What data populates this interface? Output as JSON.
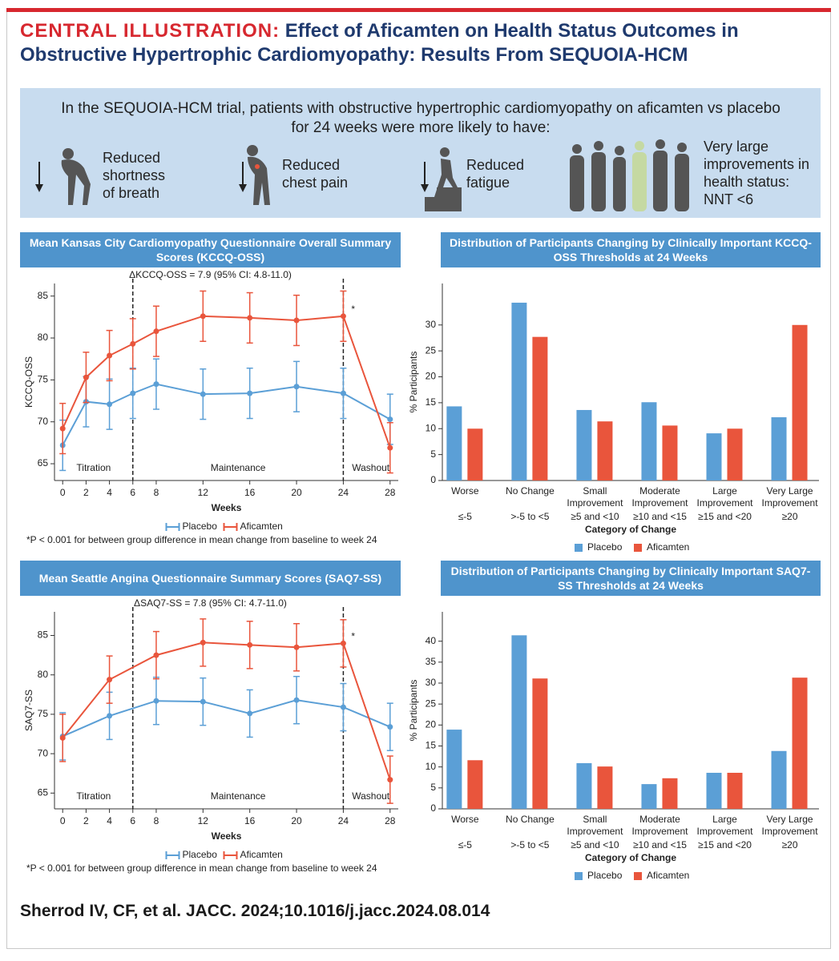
{
  "header": {
    "label": "CENTRAL ILLUSTRATION:",
    "title": "Effect of Aficamten on Health Status Outcomes in Obstructive Hypertrophic Cardiomyopathy: Results From SEQUOIA-HCM"
  },
  "summary": {
    "text": "In the SEQUOIA-HCM trial, patients with obstructive hypertrophic cardiomyopathy on aficamten vs placebo for 24 weeks were more likely to have:",
    "items": [
      "Reduced shortness of breath",
      "Reduced chest pain",
      "Reduced fatigue",
      "Very large improvements in health status: NNT <6"
    ]
  },
  "chart_data": [
    {
      "type": "line",
      "title": "Mean Kansas City Cardiomyopathy Questionnaire Overall Summary Scores (KCCQ-OSS)",
      "subtitle": "ΔKCCQ-OSS = 7.9 (95% CI: 4.8-11.0)",
      "xlabel": "Weeks",
      "ylabel": "KCCQ-OSS",
      "x": [
        0,
        2,
        4,
        6,
        8,
        12,
        16,
        20,
        24,
        28
      ],
      "series": [
        {
          "name": "Placebo",
          "color": "#5b9fd6",
          "values": [
            67.2,
            72.4,
            72.1,
            73.4,
            74.5,
            73.3,
            73.4,
            74.2,
            73.4,
            70.3
          ],
          "errors": [
            3,
            3,
            3,
            3,
            3,
            3,
            3,
            3,
            3,
            3
          ]
        },
        {
          "name": "Aficamten",
          "color": "#e9553c",
          "values": [
            69.2,
            75.3,
            77.9,
            79.3,
            80.8,
            82.6,
            82.4,
            82.1,
            82.6,
            66.9
          ],
          "errors": [
            3,
            3,
            3,
            3,
            3,
            3,
            3,
            3,
            3,
            3
          ]
        }
      ],
      "xlim": [
        -0.7,
        28.7
      ],
      "ylim": [
        63,
        86.5
      ],
      "xticks": [
        0,
        2,
        4,
        6,
        8,
        12,
        16,
        20,
        24,
        28
      ],
      "yticks": [
        65,
        70,
        75,
        80,
        85
      ],
      "vlines": [
        6,
        24
      ],
      "phases": [
        "Titration",
        "Maintenance",
        "Washout"
      ],
      "annotation": {
        "text": "*",
        "x": 24
      },
      "footnote": "*P < 0.001 for between group difference in mean change from baseline to week 24"
    },
    {
      "type": "bar",
      "title": "Distribution of Participants Changing by Clinically Important KCCQ-OSS Thresholds at 24 Weeks",
      "xlabel": "Category of Change",
      "ylabel": "% Participants",
      "categories": [
        "Worse",
        "No Change",
        "Small Improvement",
        "Moderate Improvement",
        "Large Improvement",
        "Very Large Improvement"
      ],
      "thresholds": [
        "≤-5",
        ">-5 to <5",
        "≥5 and <10",
        "≥10 and <15",
        "≥15 and <20",
        "≥20"
      ],
      "series": [
        {
          "name": "Placebo",
          "color": "#5b9fd6",
          "values": [
            14.3,
            34.3,
            13.6,
            15.1,
            9.1,
            12.2
          ]
        },
        {
          "name": "Aficamten",
          "color": "#e9553c",
          "values": [
            10.0,
            27.7,
            11.4,
            10.6,
            10.0,
            30.0
          ]
        }
      ],
      "ylim": [
        0,
        38
      ],
      "yticks": [
        0,
        5,
        10,
        15,
        20,
        25,
        30
      ]
    },
    {
      "type": "line",
      "title": "Mean Seattle Angina Questionnaire Summary Scores (SAQ7-SS)",
      "subtitle": "ΔSAQ7-SS = 7.8 (95% CI: 4.7-11.0)",
      "xlabel": "Weeks",
      "ylabel": "SAQ7-SS",
      "x": [
        0,
        4,
        8,
        12,
        16,
        20,
        24,
        28
      ],
      "series": [
        {
          "name": "Placebo",
          "color": "#5b9fd6",
          "values": [
            72.2,
            74.8,
            76.7,
            76.6,
            75.1,
            76.8,
            75.9,
            73.4
          ],
          "errors": [
            3,
            3,
            3,
            3,
            3,
            3,
            3,
            3
          ]
        },
        {
          "name": "Aficamten",
          "color": "#e9553c",
          "values": [
            72.0,
            79.4,
            82.5,
            84.1,
            83.8,
            83.5,
            84.0,
            66.7
          ],
          "errors": [
            3,
            3,
            3,
            3,
            3,
            3,
            3,
            3
          ]
        }
      ],
      "xlim": [
        -0.7,
        28.7
      ],
      "ylim": [
        63,
        88
      ],
      "xticks": [
        0,
        2,
        4,
        6,
        8,
        12,
        16,
        20,
        24,
        28
      ],
      "yticks": [
        65,
        70,
        75,
        80,
        85
      ],
      "vlines": [
        6,
        24
      ],
      "phases": [
        "Titration",
        "Maintenance",
        "Washout"
      ],
      "annotation": {
        "text": "*",
        "x": 24
      },
      "footnote": "*P < 0.001 for between group difference in mean change from baseline to week 24"
    },
    {
      "type": "bar",
      "title": "Distribution of Participants Changing by Clinically Important SAQ7-SS Thresholds at 24 Weeks",
      "xlabel": "Category of Change",
      "ylabel": "% Participants",
      "categories": [
        "Worse",
        "No Change",
        "Small Improvement",
        "Moderate Improvement",
        "Large Improvement",
        "Very Large Improvement"
      ],
      "thresholds": [
        "≤-5",
        ">-5 to <5",
        "≥5 and <10",
        "≥10 and <15",
        "≥15 and <20",
        "≥20"
      ],
      "series": [
        {
          "name": "Placebo",
          "color": "#5b9fd6",
          "values": [
            18.9,
            41.4,
            10.9,
            5.9,
            8.6,
            13.8
          ]
        },
        {
          "name": "Aficamten",
          "color": "#e9553c",
          "values": [
            11.6,
            31.1,
            10.1,
            7.3,
            8.6,
            31.3
          ]
        }
      ],
      "ylim": [
        0,
        47
      ],
      "yticks": [
        0,
        5,
        10,
        15,
        20,
        25,
        30,
        35,
        40
      ]
    }
  ],
  "citation": "Sherrod IV, CF, et al. JACC. 2024;10.1016/j.jacc.2024.08.014"
}
